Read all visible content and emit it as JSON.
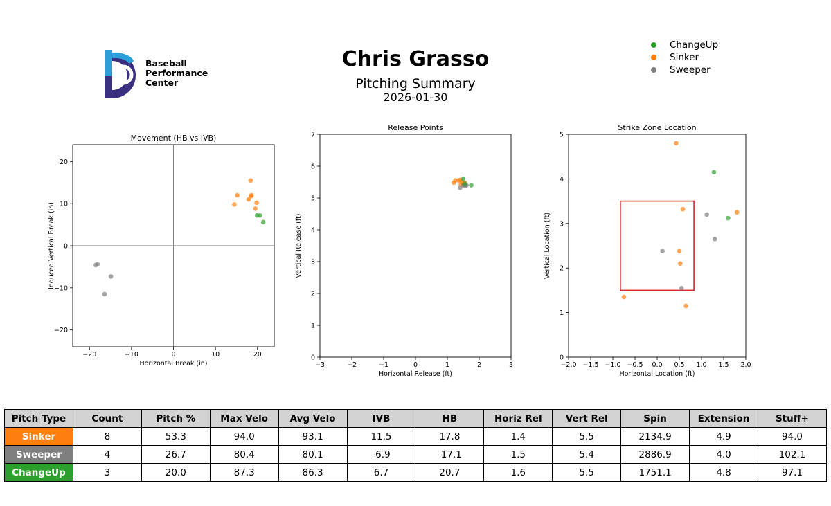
{
  "header": {
    "title": "Chris Grasso",
    "subtitle": "Pitching Summary",
    "date": "2026-01-30"
  },
  "logo": {
    "line1": "Baseball",
    "line2": "Performance",
    "line3": "Center"
  },
  "colors": {
    "ChangeUp": "#2ca02c",
    "Sinker": "#ff7f0e",
    "Sweeper": "#7f7f7f",
    "zone": "#d62728"
  },
  "legend": [
    {
      "label": "ChangeUp",
      "color": "#2ca02c"
    },
    {
      "label": "Sinker",
      "color": "#ff7f0e"
    },
    {
      "label": "Sweeper",
      "color": "#7f7f7f"
    }
  ],
  "chart_data": [
    {
      "type": "scatter",
      "title": "Movement (HB vs IVB)",
      "xlabel": "Horizontal Break (in)",
      "ylabel": "Induced Vertical Break (in)",
      "xlim": [
        -24,
        24
      ],
      "ylim": [
        -24,
        24
      ],
      "xticks": [
        -20,
        -10,
        0,
        10,
        20
      ],
      "yticks": [
        -20,
        -10,
        0,
        10,
        20
      ],
      "xtick_labels": [
        "−20",
        "−10",
        "0",
        "10",
        "20"
      ],
      "ytick_labels": [
        "−20",
        "−10",
        "0",
        "10",
        "20"
      ],
      "crosshair": true,
      "series": [
        {
          "name": "Sinker",
          "x": [
            14.5,
            15.2,
            17.9,
            18.4,
            18.6,
            18.5,
            19.5,
            19.8
          ],
          "y": [
            9.8,
            12.0,
            11.0,
            15.5,
            12.0,
            11.8,
            8.8,
            10.2
          ]
        },
        {
          "name": "Sweeper",
          "x": [
            -18.5,
            -18.1,
            -16.4,
            -14.9
          ],
          "y": [
            -4.6,
            -4.4,
            -11.5,
            -7.3
          ]
        },
        {
          "name": "ChangeUp",
          "x": [
            19.9,
            20.6,
            21.4
          ],
          "y": [
            7.2,
            7.2,
            5.6
          ]
        }
      ]
    },
    {
      "type": "scatter",
      "title": "Release Points",
      "xlabel": "Horizontal Release (ft)",
      "ylabel": "Vertical Release (ft)",
      "xlim": [
        -3,
        3
      ],
      "ylim": [
        0,
        7
      ],
      "xticks": [
        -3,
        -2,
        -1,
        0,
        1,
        2,
        3
      ],
      "yticks": [
        0,
        1,
        2,
        3,
        4,
        5,
        6,
        7
      ],
      "xtick_labels": [
        "−3",
        "−2",
        "−1",
        "0",
        "1",
        "2",
        "3"
      ],
      "ytick_labels": [
        "0",
        "1",
        "2",
        "3",
        "4",
        "5",
        "6",
        "7"
      ],
      "series": [
        {
          "name": "Sinker",
          "x": [
            1.2,
            1.25,
            1.35,
            1.4,
            1.45,
            1.5,
            1.42,
            1.55
          ],
          "y": [
            5.48,
            5.55,
            5.55,
            5.57,
            5.5,
            5.45,
            5.42,
            5.48
          ]
        },
        {
          "name": "Sweeper",
          "x": [
            1.4,
            1.5,
            1.55,
            1.6
          ],
          "y": [
            5.32,
            5.4,
            5.38,
            5.4
          ]
        },
        {
          "name": "ChangeUp",
          "x": [
            1.5,
            1.75,
            1.55
          ],
          "y": [
            5.6,
            5.4,
            5.45
          ]
        }
      ]
    },
    {
      "type": "scatter",
      "title": "Strike Zone Location",
      "xlabel": "Horizontal Location (ft)",
      "ylabel": "Vertical Location (ft)",
      "xlim": [
        -2.0,
        2.0
      ],
      "ylim": [
        0,
        5
      ],
      "xticks": [
        -2.0,
        -1.5,
        -1.0,
        -0.5,
        0.0,
        0.5,
        1.0,
        1.5,
        2.0
      ],
      "yticks": [
        0,
        1,
        2,
        3,
        4,
        5
      ],
      "xtick_labels": [
        "−2.0",
        "−1.5",
        "−1.0",
        "−0.5",
        "0.0",
        "0.5",
        "1.0",
        "1.5",
        "2.0"
      ],
      "ytick_labels": [
        "0",
        "1",
        "2",
        "3",
        "4",
        "5"
      ],
      "strike_zone": {
        "x": [
          -0.83,
          0.83
        ],
        "y": [
          1.5,
          3.5
        ]
      },
      "series": [
        {
          "name": "Sinker",
          "x": [
            0.43,
            0.58,
            0.5,
            0.52,
            0.65,
            -0.75,
            1.8
          ],
          "y": [
            4.8,
            3.32,
            2.38,
            2.1,
            1.15,
            1.35,
            3.25
          ]
        },
        {
          "name": "Sweeper",
          "x": [
            0.12,
            0.55,
            1.12,
            1.3
          ],
          "y": [
            2.38,
            1.55,
            3.2,
            2.65
          ]
        },
        {
          "name": "ChangeUp",
          "x": [
            1.28,
            1.6
          ],
          "y": [
            4.15,
            3.12
          ]
        }
      ]
    }
  ],
  "table": {
    "headers": [
      "Pitch Type",
      "Count",
      "Pitch %",
      "Max Velo",
      "Avg Velo",
      "IVB",
      "HB",
      "Horiz Rel",
      "Vert Rel",
      "Spin",
      "Extension",
      "Stuff+"
    ],
    "rows": [
      {
        "pitch_type": "Sinker",
        "color": "#ff7f0e",
        "values": [
          "8",
          "53.3",
          "94.0",
          "93.1",
          "11.5",
          "17.8",
          "1.4",
          "5.5",
          "2134.9",
          "4.9",
          "94.0"
        ]
      },
      {
        "pitch_type": "Sweeper",
        "color": "#7f7f7f",
        "values": [
          "4",
          "26.7",
          "80.4",
          "80.1",
          "-6.9",
          "-17.1",
          "1.5",
          "5.4",
          "2886.9",
          "4.0",
          "102.1"
        ]
      },
      {
        "pitch_type": "ChangeUp",
        "color": "#2ca02c",
        "values": [
          "3",
          "20.0",
          "87.3",
          "86.3",
          "6.7",
          "20.7",
          "1.6",
          "5.5",
          "1751.1",
          "4.8",
          "97.1"
        ]
      }
    ]
  }
}
